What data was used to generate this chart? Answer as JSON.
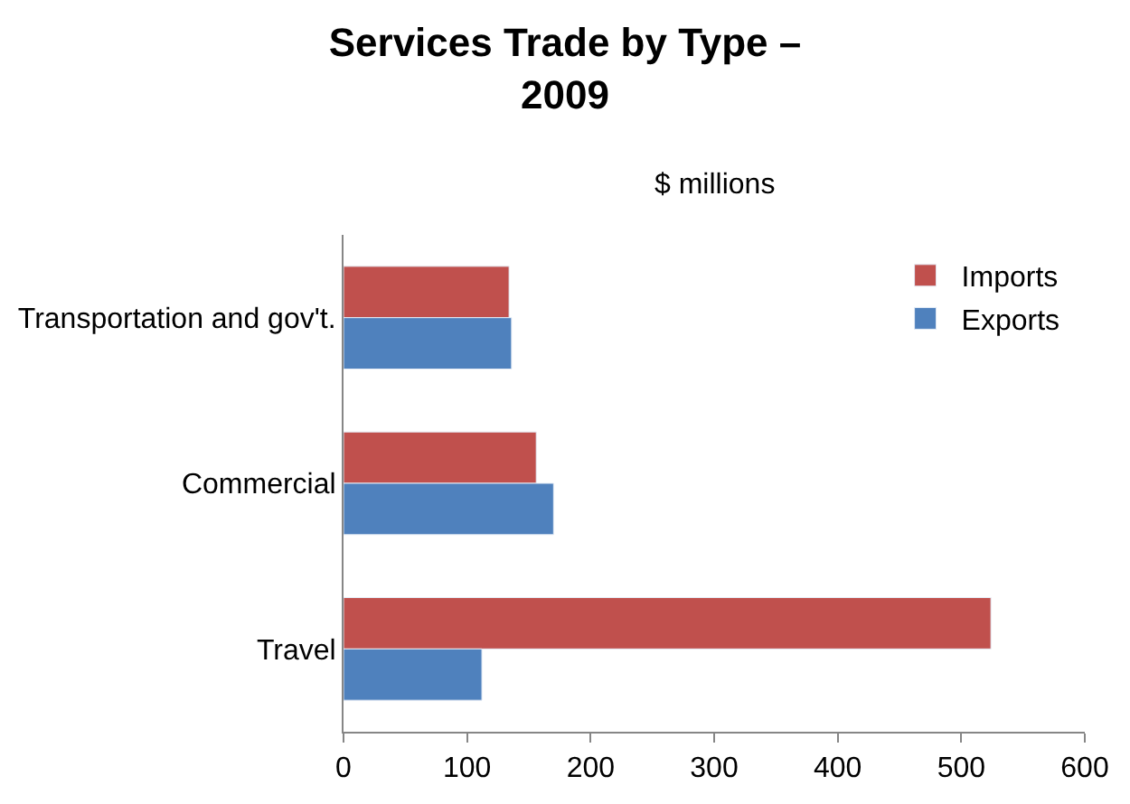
{
  "chart_data": {
    "type": "bar",
    "orientation": "horizontal",
    "title": "Services Trade by Type – 2009",
    "subtitle": "$ millions",
    "categories": [
      "Transportation and gov't.",
      "Commercial",
      "Travel"
    ],
    "series": [
      {
        "name": "Imports",
        "color": "#c0504d",
        "values": [
          134,
          156,
          524
        ]
      },
      {
        "name": "Exports",
        "color": "#4f81bd",
        "values": [
          136,
          170,
          112
        ]
      }
    ],
    "xlim": [
      0,
      600
    ],
    "xticks": [
      0,
      100,
      200,
      300,
      400,
      500,
      600
    ],
    "legend": "top right"
  }
}
